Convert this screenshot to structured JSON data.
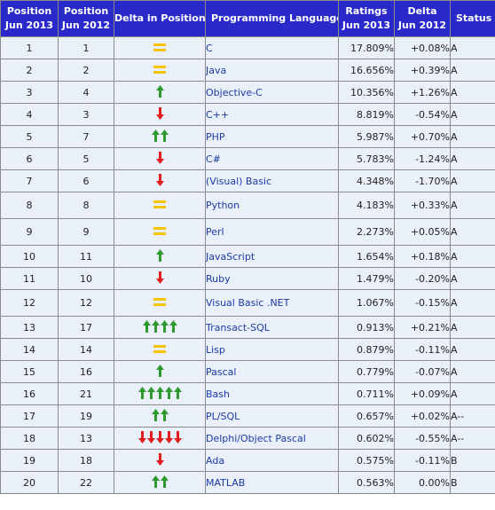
{
  "headers": {
    "pos2013": [
      "Position",
      "Jun 2013"
    ],
    "pos2012": [
      "Position",
      "Jun 2012"
    ],
    "delta_position": "Delta in Position",
    "language": "Programming Language",
    "ratings": [
      "Ratings",
      "Jun 2013"
    ],
    "delta": [
      "Delta",
      "Jun 2012"
    ],
    "status": "Status"
  },
  "colors": {
    "header_bg": "#2a2acb",
    "row_bg": "#eaf0fa",
    "link": "#1b3aa6",
    "arrow_up": "#2e9a2e",
    "arrow_down": "#e31d1d",
    "equal": "#f5c400"
  },
  "row_heights": [],
  "rows": [
    {
      "pos2013": "1",
      "pos2012": "1",
      "delta": "equal",
      "count": 0,
      "language": "C",
      "rating": "17.809%",
      "change": "+0.08%",
      "status": "A"
    },
    {
      "pos2013": "2",
      "pos2012": "2",
      "delta": "equal",
      "count": 0,
      "language": "Java",
      "rating": "16.656%",
      "change": "+0.39%",
      "status": "A"
    },
    {
      "pos2013": "3",
      "pos2012": "4",
      "delta": "up",
      "count": 1,
      "language": "Objective-C",
      "rating": "10.356%",
      "change": "+1.26%",
      "status": "A"
    },
    {
      "pos2013": "4",
      "pos2012": "3",
      "delta": "down",
      "count": 1,
      "language": "C++",
      "rating": "8.819%",
      "change": "-0.54%",
      "status": "A"
    },
    {
      "pos2013": "5",
      "pos2012": "7",
      "delta": "up",
      "count": 2,
      "language": "PHP",
      "rating": "5.987%",
      "change": "+0.70%",
      "status": "A"
    },
    {
      "pos2013": "6",
      "pos2012": "5",
      "delta": "down",
      "count": 1,
      "language": "C#",
      "rating": "5.783%",
      "change": "-1.24%",
      "status": "A"
    },
    {
      "pos2013": "7",
      "pos2012": "6",
      "delta": "down",
      "count": 1,
      "language": "(Visual) Basic",
      "rating": "4.348%",
      "change": "-1.70%",
      "status": "A"
    },
    {
      "pos2013": "8",
      "pos2012": "8",
      "delta": "equal",
      "count": 0,
      "language": "Python",
      "rating": "4.183%",
      "change": "+0.33%",
      "status": "A"
    },
    {
      "pos2013": "9",
      "pos2012": "9",
      "delta": "equal",
      "count": 0,
      "language": "Perl",
      "rating": "2.273%",
      "change": "+0.05%",
      "status": "A"
    },
    {
      "pos2013": "10",
      "pos2012": "11",
      "delta": "up",
      "count": 1,
      "language": "JavaScript",
      "rating": "1.654%",
      "change": "+0.18%",
      "status": "A"
    },
    {
      "pos2013": "11",
      "pos2012": "10",
      "delta": "down",
      "count": 1,
      "language": "Ruby",
      "rating": "1.479%",
      "change": "-0.20%",
      "status": "A"
    },
    {
      "pos2013": "12",
      "pos2012": "12",
      "delta": "equal",
      "count": 0,
      "language": "Visual Basic .NET",
      "rating": "1.067%",
      "change": "-0.15%",
      "status": "A"
    },
    {
      "pos2013": "13",
      "pos2012": "17",
      "delta": "up",
      "count": 4,
      "language": "Transact-SQL",
      "rating": "0.913%",
      "change": "+0.21%",
      "status": "A"
    },
    {
      "pos2013": "14",
      "pos2012": "14",
      "delta": "equal",
      "count": 0,
      "language": "Lisp",
      "rating": "0.879%",
      "change": "-0.11%",
      "status": "A"
    },
    {
      "pos2013": "15",
      "pos2012": "16",
      "delta": "up",
      "count": 1,
      "language": "Pascal",
      "rating": "0.779%",
      "change": "-0.07%",
      "status": "A"
    },
    {
      "pos2013": "16",
      "pos2012": "21",
      "delta": "up",
      "count": 5,
      "language": "Bash",
      "rating": "0.711%",
      "change": "+0.09%",
      "status": "A"
    },
    {
      "pos2013": "17",
      "pos2012": "19",
      "delta": "up",
      "count": 2,
      "language": "PL/SQL",
      "rating": "0.657%",
      "change": "+0.02%",
      "status": "A--"
    },
    {
      "pos2013": "18",
      "pos2012": "13",
      "delta": "down",
      "count": 5,
      "language": "Delphi/Object Pascal",
      "rating": "0.602%",
      "change": "-0.55%",
      "status": "A--"
    },
    {
      "pos2013": "19",
      "pos2012": "18",
      "delta": "down",
      "count": 1,
      "language": "Ada",
      "rating": "0.575%",
      "change": "-0.11%",
      "status": "B"
    },
    {
      "pos2013": "20",
      "pos2012": "22",
      "delta": "up",
      "count": 2,
      "language": "MATLAB",
      "rating": "0.563%",
      "change": "0.00%",
      "status": "B"
    }
  ]
}
